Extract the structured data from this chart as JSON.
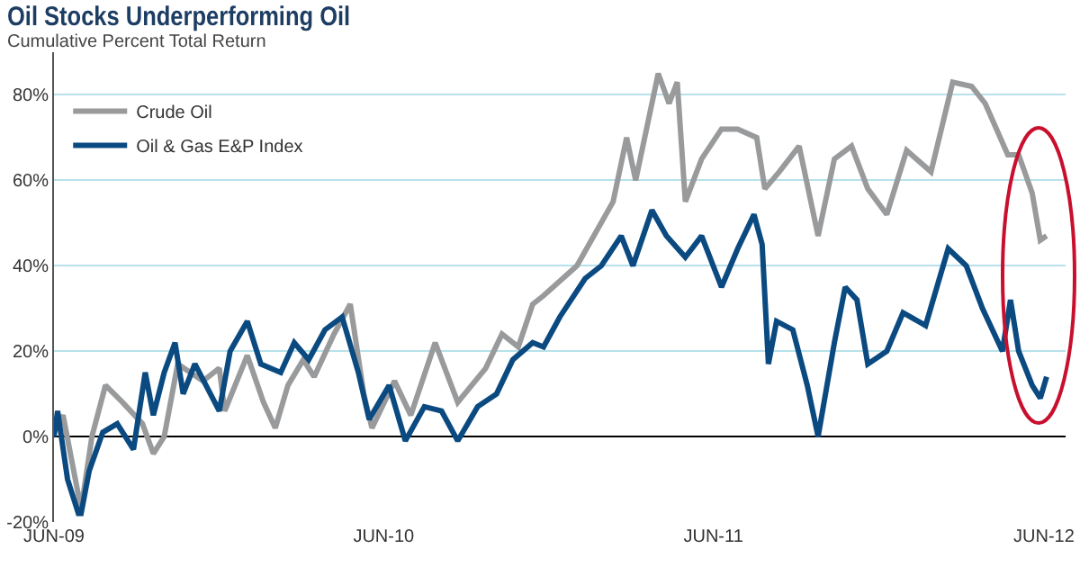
{
  "chart_data": {
    "type": "line",
    "title": "Oil Stocks Underperforming Oil",
    "subtitle": "Cumulative Percent Total Return",
    "xlim": [
      "2009-06-01",
      "2012-06-25"
    ],
    "xticks": [
      {
        "value": "2009-06-01",
        "label": "JUN-09"
      },
      {
        "value": "2010-06-01",
        "label": "JUN-10"
      },
      {
        "value": "2011-06-01",
        "label": "JUN-11"
      },
      {
        "value": "2012-06-01",
        "label": "JUN-12"
      }
    ],
    "ylim": [
      -20,
      90
    ],
    "yticks": [
      {
        "value": -20,
        "label": "-20%"
      },
      {
        "value": 0,
        "label": "0%"
      },
      {
        "value": 20,
        "label": "20%"
      },
      {
        "value": 40,
        "label": "40%"
      },
      {
        "value": 60,
        "label": "60%"
      },
      {
        "value": 80,
        "label": "80%"
      }
    ],
    "grid": "y",
    "legend": "top left",
    "marker": "none",
    "line_style": "solid",
    "series": [
      {
        "name": "Crude Oil",
        "color": "#999a9c",
        "x": [
          "2009-06-01",
          "2009-06-11",
          "2009-07-01",
          "2009-07-13",
          "2009-07-28",
          "2009-08-16",
          "2009-09-07",
          "2009-09-19",
          "2009-10-01",
          "2009-10-16",
          "2009-11-13",
          "2009-12-01",
          "2009-12-07",
          "2010-01-01",
          "2010-01-19",
          "2010-02-01",
          "2010-02-15",
          "2010-03-04",
          "2010-03-16",
          "2010-04-07",
          "2010-04-25",
          "2010-05-10",
          "2010-05-19",
          "2010-06-13",
          "2010-07-01",
          "2010-07-28",
          "2010-08-22",
          "2010-09-22",
          "2010-10-10",
          "2010-10-28",
          "2010-11-13",
          "2010-11-25",
          "2011-01-01",
          "2011-02-10",
          "2011-02-25",
          "2011-03-07",
          "2011-04-01",
          "2011-04-13",
          "2011-04-22",
          "2011-05-01",
          "2011-05-19",
          "2011-06-10",
          "2011-06-28",
          "2011-07-19",
          "2011-07-28",
          "2011-08-13",
          "2011-09-04",
          "2011-09-25",
          "2011-10-13",
          "2011-11-01",
          "2011-11-19",
          "2011-12-10",
          "2012-01-01",
          "2012-01-28",
          "2012-02-21",
          "2012-03-13",
          "2012-03-28",
          "2012-04-22",
          "2012-05-04",
          "2012-05-19",
          "2012-05-28",
          "2012-06-04"
        ],
        "values": [
          1,
          5,
          -17,
          0,
          12,
          8,
          3,
          -4,
          0,
          17,
          13,
          16,
          6,
          19,
          8,
          2,
          12,
          18,
          14,
          24,
          31,
          10,
          2,
          13,
          5,
          22,
          8,
          16,
          24,
          21,
          31,
          33,
          40,
          55,
          70,
          60,
          85,
          78,
          83,
          55,
          65,
          72,
          72,
          70,
          58,
          62,
          68,
          47,
          65,
          68,
          58,
          52,
          67,
          62,
          83,
          82,
          78,
          66,
          66,
          57,
          46,
          47
        ]
      },
      {
        "name": "Oil & Gas E&P Index",
        "color": "#0b4a80",
        "x": [
          "2009-06-01",
          "2009-06-05",
          "2009-06-16",
          "2009-06-28",
          "2009-07-01",
          "2009-07-10",
          "2009-07-25",
          "2009-08-10",
          "2009-08-28",
          "2009-09-10",
          "2009-09-19",
          "2009-10-01",
          "2009-10-13",
          "2009-10-22",
          "2009-11-04",
          "2009-12-01",
          "2009-12-13",
          "2010-01-01",
          "2010-01-16",
          "2010-02-07",
          "2010-02-22",
          "2010-03-10",
          "2010-03-28",
          "2010-04-16",
          "2010-05-04",
          "2010-05-16",
          "2010-06-07",
          "2010-06-25",
          "2010-07-16",
          "2010-08-04",
          "2010-08-22",
          "2010-09-13",
          "2010-10-04",
          "2010-10-22",
          "2010-11-13",
          "2010-11-25",
          "2010-12-13",
          "2011-01-10",
          "2011-01-28",
          "2011-02-19",
          "2011-03-04",
          "2011-03-25",
          "2011-04-10",
          "2011-05-01",
          "2011-05-19",
          "2011-06-10",
          "2011-06-28",
          "2011-07-16",
          "2011-07-25",
          "2011-08-01",
          "2011-08-10",
          "2011-08-28",
          "2011-09-13",
          "2011-09-25",
          "2011-10-13",
          "2011-10-25",
          "2011-11-07",
          "2011-11-19",
          "2011-12-10",
          "2011-12-28",
          "2012-01-22",
          "2012-02-16",
          "2012-03-07",
          "2012-03-25",
          "2012-04-16",
          "2012-04-25",
          "2012-05-04",
          "2012-05-19",
          "2012-05-28",
          "2012-06-04"
        ],
        "values": [
          0,
          6,
          -10,
          -18,
          -18,
          -8,
          1,
          3,
          -3,
          15,
          5,
          15,
          22,
          10,
          17,
          6,
          20,
          27,
          17,
          15,
          22,
          18,
          25,
          28,
          15,
          4,
          12,
          -1,
          7,
          6,
          -1,
          7,
          10,
          18,
          22,
          21,
          28,
          37,
          40,
          47,
          40,
          53,
          47,
          42,
          47,
          35,
          44,
          52,
          45,
          17,
          27,
          25,
          12,
          0,
          22,
          35,
          32,
          17,
          20,
          29,
          26,
          44,
          40,
          30,
          20,
          32,
          20,
          12,
          9,
          14
        ]
      }
    ]
  }
}
